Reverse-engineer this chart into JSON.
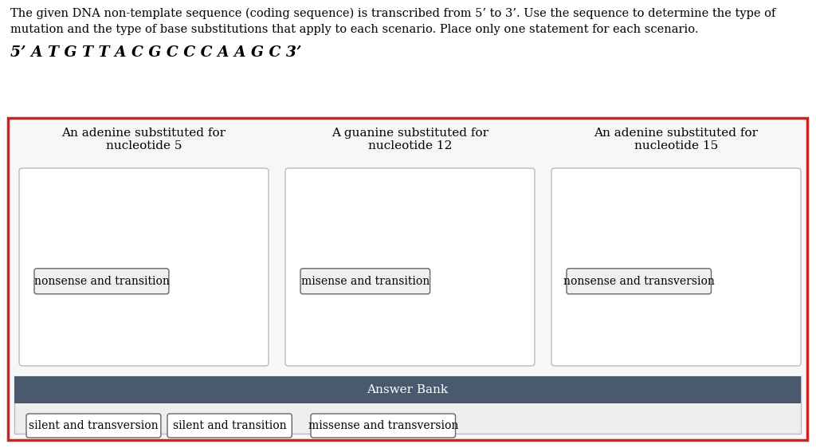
{
  "bg_color": "#ffffff",
  "top_text_line1": "The given DNA non-template sequence (coding sequence) is transcribed from 5’ to 3’. Use the sequence to determine the type of",
  "top_text_line2": "mutation and the type of base substitutions that apply to each scenario. Place only one statement for each scenario.",
  "sequence_text": "5’ A T G T T A C G C C C A A G C 3’",
  "red_border_color": "#cc2222",
  "column_titles": [
    "An adenine substituted for\nnucleotide 5",
    "A guanine substituted for\nnucleotide 12",
    "An adenine substituted for\nnucleotide 15"
  ],
  "box_answers": [
    "nonsense and transition",
    "misense and transition",
    "nonsense and transversion"
  ],
  "answer_bank_header": "Answer Bank",
  "answer_bank_header_bg": "#4a5a6e",
  "answer_bank_items": [
    "silent and transversion",
    "silent and transition",
    "missense and transversion"
  ],
  "inner_box_bg": "#ffffff",
  "inner_box_border": "#bbbbbb",
  "answer_item_border": "#666666",
  "answer_bank_bg": "#eeeeee",
  "font_size_top": 10.5,
  "font_size_sequence": 13.5,
  "font_size_col_title": 11,
  "font_size_answer": 10,
  "font_size_bank_header": 11
}
